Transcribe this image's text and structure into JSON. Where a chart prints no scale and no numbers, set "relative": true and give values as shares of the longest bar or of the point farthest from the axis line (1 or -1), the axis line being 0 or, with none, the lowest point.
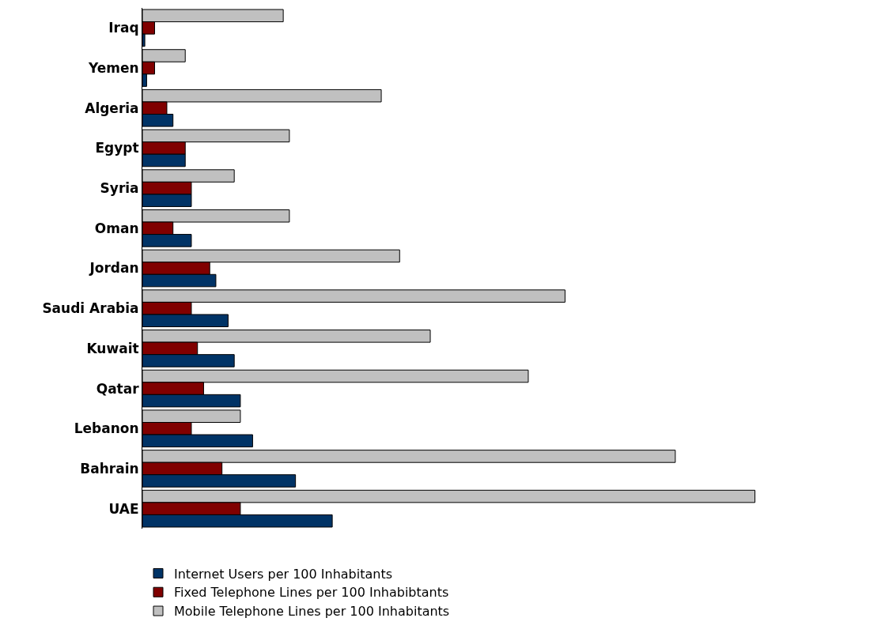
{
  "chart_data": {
    "type": "bar",
    "orientation": "horizontal",
    "relative": true,
    "legend": "bottom",
    "grid": false,
    "categories": [
      "Iraq",
      "Yemen",
      "Algeria",
      "Egypt",
      "Syria",
      "Oman",
      "Jordan",
      "Saudi Arabia",
      "Kuwait",
      "Qatar",
      "Lebanon",
      "Bahrain",
      "UAE"
    ],
    "series": [
      {
        "name": "Internet Users per 100 Inhabitants",
        "color": "#003366",
        "values": [
          0.004,
          0.007,
          0.05,
          0.07,
          0.08,
          0.08,
          0.12,
          0.14,
          0.15,
          0.16,
          0.18,
          0.25,
          0.31
        ]
      },
      {
        "name": "Fixed Telephone Lines per 100 Inhabibtants",
        "color": "#800000",
        "values": [
          0.02,
          0.02,
          0.04,
          0.07,
          0.08,
          0.05,
          0.11,
          0.08,
          0.09,
          0.1,
          0.08,
          0.13,
          0.16
        ]
      },
      {
        "name": "Mobile Telephone Lines per 100 Inhabitants",
        "color": "#c0c0c0",
        "values": [
          0.23,
          0.07,
          0.39,
          0.24,
          0.15,
          0.24,
          0.42,
          0.69,
          0.47,
          0.63,
          0.16,
          0.87,
          1
        ]
      }
    ]
  }
}
